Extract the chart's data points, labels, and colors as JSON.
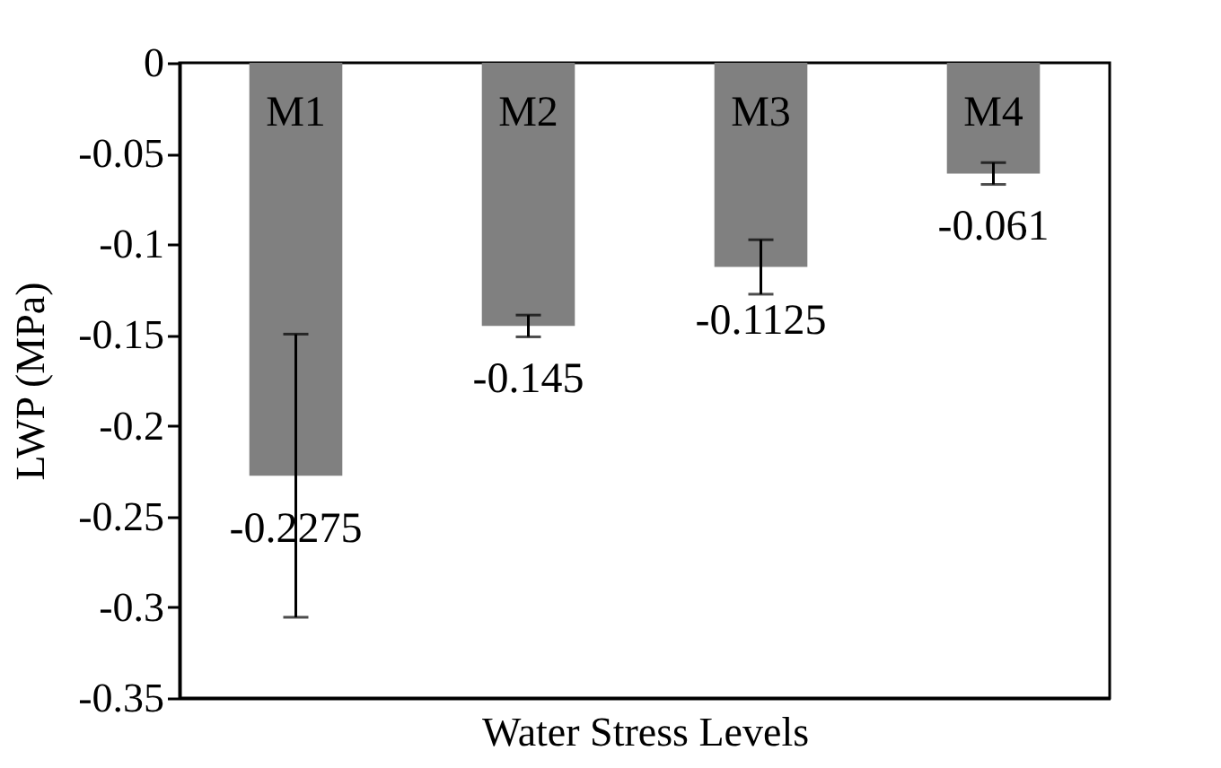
{
  "chart_data": {
    "type": "bar",
    "xlabel": "Water Stress Levels",
    "ylabel": "LWP (MPa)",
    "categories": [
      "M1",
      "M2",
      "M3",
      "M4"
    ],
    "values": [
      -0.2275,
      -0.145,
      -0.1125,
      -0.061
    ],
    "errors": [
      0.078,
      0.006,
      0.015,
      0.006
    ],
    "color": "#808080",
    "data_labels": true,
    "grid": false,
    "ylim": [
      -0.35,
      0
    ],
    "yticks": [
      0,
      -0.05,
      -0.1,
      -0.15,
      -0.2,
      -0.25,
      -0.3,
      -0.35
    ]
  }
}
